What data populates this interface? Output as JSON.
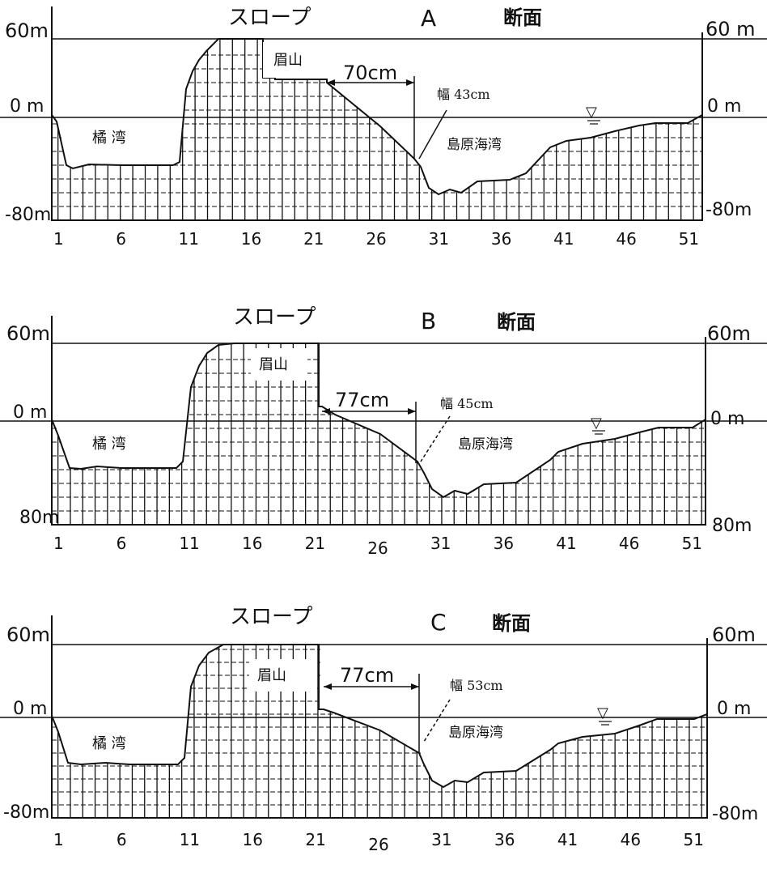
{
  "diagram": {
    "x_ticks": [
      "1",
      "6",
      "11",
      "16",
      "21",
      "26",
      "31",
      "36",
      "41",
      "46",
      "51"
    ],
    "panels": [
      {
        "title_prefix": "スロープ",
        "title_letter": "A",
        "title_suffix": "断面",
        "left_top_label": "60m",
        "left_mid_label": "0 m",
        "left_bottom_label": "-80m",
        "right_top_label": "60 m",
        "right_mid_label": "0 m",
        "right_bottom_label": "-80m",
        "peak_label": "眉山",
        "bay_left_label": "橘 湾",
        "bay_right_label": "島原海湾",
        "distance_label": "70cm",
        "width_label": "幅 43cm",
        "water_symbol": "▽"
      },
      {
        "title_prefix": "スロープ",
        "title_letter": "B",
        "title_suffix": "断面",
        "left_top_label": "60m",
        "left_mid_label": "0 m",
        "left_bottom_label": "80m",
        "right_top_label": "60m",
        "right_mid_label": "0 m",
        "right_bottom_label": "80m",
        "peak_label": "眉山",
        "bay_left_label": "橘 湾",
        "bay_right_label": "島原海湾",
        "distance_label": "77cm",
        "width_label": "幅 45cm",
        "water_symbol": "▽"
      },
      {
        "title_prefix": "スロープ",
        "title_letter": "C",
        "title_suffix": "断面",
        "left_top_label": "60m",
        "left_mid_label": "0 m",
        "left_bottom_label": "-80m",
        "right_top_label": "60m",
        "right_mid_label": "0 m",
        "right_bottom_label": "-80m",
        "peak_label": "眉山",
        "bay_left_label": "橘 湾",
        "bay_right_label": "島原海湾",
        "distance_label": "77cm",
        "width_label": "幅 53cm",
        "water_symbol": "▽"
      }
    ]
  }
}
